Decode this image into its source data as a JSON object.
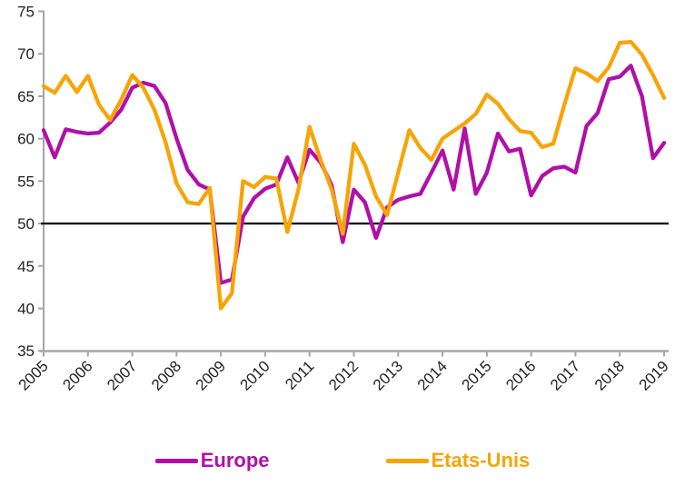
{
  "chart_data": {
    "type": "line",
    "title": "",
    "x_unit": "quarterly",
    "x_start_year": 2005,
    "x_end_year": 2019,
    "x_tick_labels": [
      "2005",
      "2006",
      "2007",
      "2008",
      "2009",
      "2010",
      "2011",
      "2012",
      "2013",
      "2014",
      "2015",
      "2016",
      "2017",
      "2018",
      "2019"
    ],
    "ylim": [
      35,
      75
    ],
    "yticks": [
      35,
      40,
      45,
      50,
      55,
      60,
      65,
      70,
      75
    ],
    "grid": "off",
    "legend_position": "bottom",
    "reference_line": 50,
    "reference_line_color": "#1a1a1a",
    "axis_color": "#a6a6a6",
    "tick_label_color": "#1f1f1f",
    "series": [
      {
        "name": "Europe",
        "color": "#b010a8",
        "values": [
          61.0,
          57.8,
          61.1,
          60.8,
          60.6,
          60.7,
          61.9,
          63.4,
          66.0,
          66.6,
          66.2,
          64.2,
          60.0,
          56.3,
          54.6,
          54.0,
          43.0,
          43.4,
          50.8,
          53.0,
          54.1,
          54.6,
          57.8,
          54.8,
          58.7,
          57.2,
          54.5,
          47.8,
          54.0,
          52.5,
          48.3,
          51.9,
          52.8,
          53.2,
          53.5,
          56.0,
          58.6,
          54.0,
          61.2,
          53.5,
          56.0,
          60.6,
          58.5,
          58.8,
          53.3,
          55.6,
          56.5,
          56.7,
          56.0,
          61.5,
          63.0,
          67.0,
          67.3,
          68.6,
          65.0,
          57.7,
          59.5
        ]
      },
      {
        "name": "Etats-Unis",
        "color": "#f7a405",
        "values": [
          66.2,
          65.4,
          67.4,
          65.5,
          67.4,
          64.0,
          62.2,
          64.6,
          67.5,
          66.0,
          63.4,
          59.6,
          54.7,
          52.5,
          52.3,
          54.2,
          40.0,
          41.8,
          55.0,
          54.3,
          55.5,
          55.3,
          49.0,
          54.0,
          61.4,
          57.5,
          54.0,
          48.8,
          59.4,
          56.9,
          53.2,
          51.0,
          56.0,
          61.0,
          58.9,
          57.5,
          60.0,
          60.9,
          61.8,
          62.9,
          65.2,
          64.1,
          62.3,
          60.9,
          60.7,
          59.0,
          59.4,
          64.0,
          68.3,
          67.7,
          66.8,
          68.4,
          71.3,
          71.4,
          69.9,
          67.5,
          64.8
        ]
      }
    ]
  }
}
